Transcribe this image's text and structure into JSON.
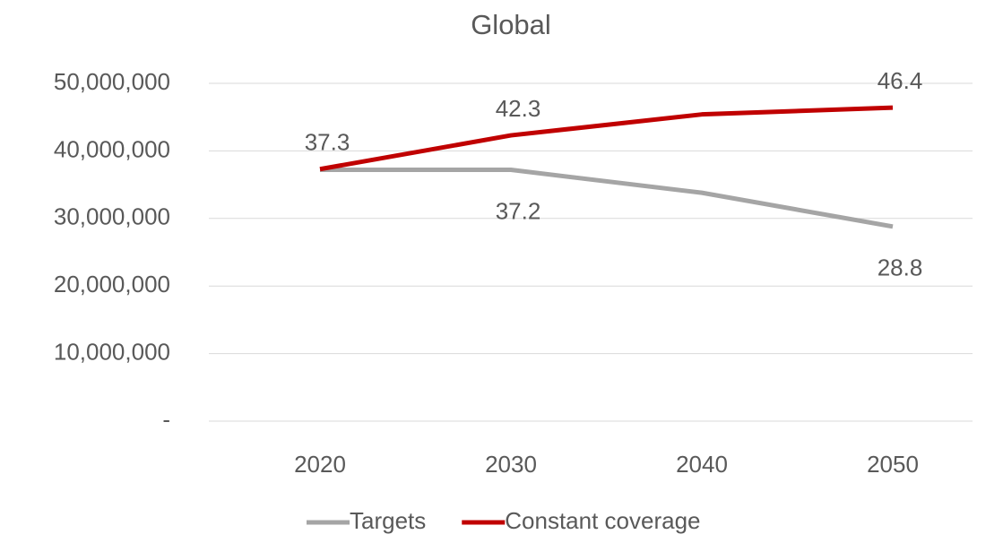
{
  "chart_data": {
    "type": "line",
    "title": "Global",
    "categories": [
      "2020",
      "2030",
      "2040",
      "2050"
    ],
    "series": [
      {
        "name": "Targets",
        "color": "#a5a5a5",
        "values": [
          37200000,
          37200000,
          33800000,
          28800000
        ],
        "value_labels": [
          null,
          "37.2",
          null,
          "28.8"
        ]
      },
      {
        "name": "Constant coverage",
        "color": "#c00000",
        "values": [
          37300000,
          42300000,
          45400000,
          46400000
        ],
        "value_labels": [
          "37.3",
          "42.3",
          null,
          "46.4"
        ]
      }
    ],
    "ylim": [
      0,
      50000000
    ],
    "yticks": [
      {
        "value": 0,
        "label": "-"
      },
      {
        "value": 10000000,
        "label": "10,000,000"
      },
      {
        "value": 20000000,
        "label": "20,000,000"
      },
      {
        "value": 30000000,
        "label": "30,000,000"
      },
      {
        "value": 40000000,
        "label": "40,000,000"
      },
      {
        "value": 50000000,
        "label": "50,000,000"
      }
    ],
    "grid": true,
    "legend": "bottom"
  }
}
